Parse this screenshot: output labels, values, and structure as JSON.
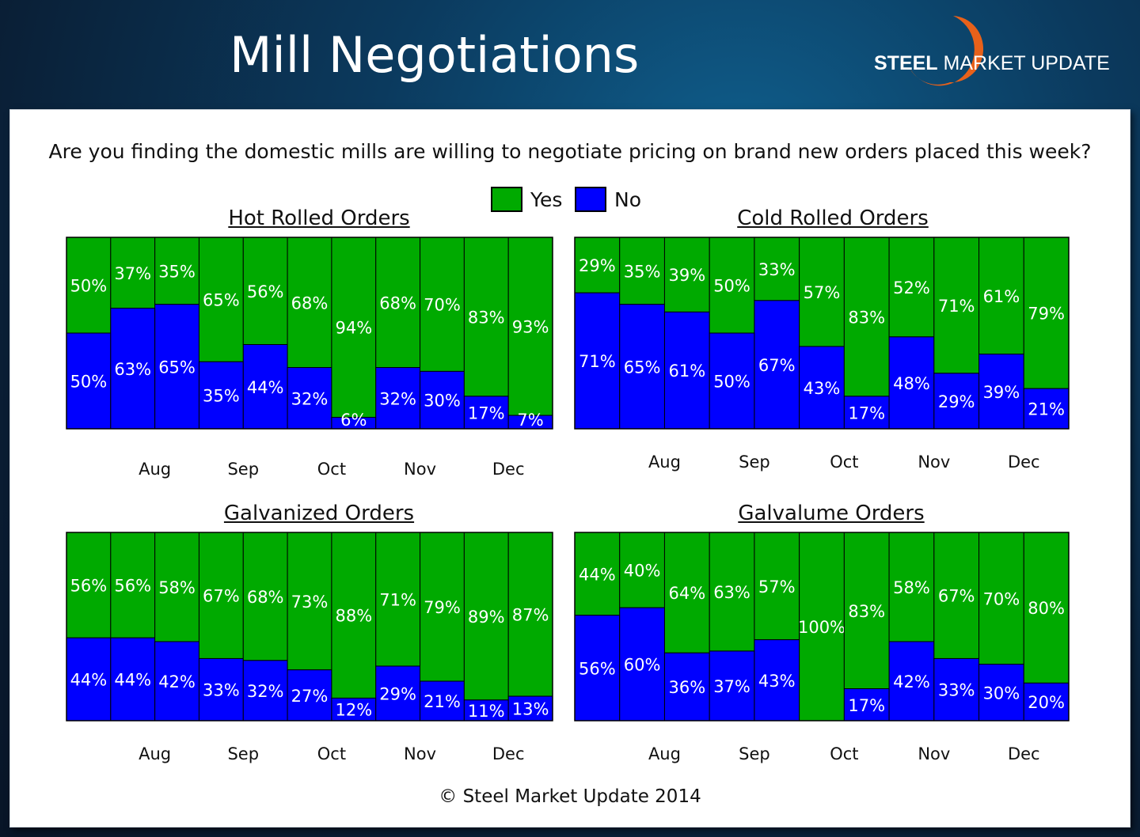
{
  "header": {
    "title": "Mill Negotiations",
    "logo_bold": "STEEL",
    "logo_rest": " MARKET UPDATE"
  },
  "question": "Are you finding the domestic mills are willing to negotiate pricing on brand new orders placed this week?",
  "legend": {
    "yes_label": "Yes",
    "no_label": "No",
    "yes_color": "#00aa00",
    "no_color": "#0000ff"
  },
  "copyright": "© Steel Market Update 2014",
  "chart_data": [
    {
      "type": "bar",
      "stacked": true,
      "title": "Hot Rolled Orders",
      "month_labels": [
        "Aug",
        "Sep",
        "Oct",
        "Nov",
        "Dec"
      ],
      "ylim": [
        0,
        100
      ],
      "series": [
        {
          "name": "Yes",
          "color": "#00aa00",
          "values": [
            50,
            37,
            35,
            65,
            56,
            68,
            94,
            68,
            70,
            83,
            93
          ]
        },
        {
          "name": "No",
          "color": "#0000ff",
          "values": [
            50,
            63,
            65,
            35,
            44,
            32,
            6,
            32,
            30,
            17,
            7
          ]
        }
      ]
    },
    {
      "type": "bar",
      "stacked": true,
      "title": "Cold Rolled Orders",
      "month_labels": [
        "Aug",
        "Sep",
        "Oct",
        "Nov",
        "Dec"
      ],
      "ylim": [
        0,
        100
      ],
      "series": [
        {
          "name": "Yes",
          "color": "#00aa00",
          "values": [
            29,
            35,
            39,
            50,
            33,
            57,
            83,
            52,
            71,
            61,
            79
          ]
        },
        {
          "name": "No",
          "color": "#0000ff",
          "values": [
            71,
            65,
            61,
            50,
            67,
            43,
            17,
            48,
            29,
            39,
            21
          ]
        }
      ]
    },
    {
      "type": "bar",
      "stacked": true,
      "title": "Galvanized Orders",
      "month_labels": [
        "Aug",
        "Sep",
        "Oct",
        "Nov",
        "Dec"
      ],
      "ylim": [
        0,
        100
      ],
      "series": [
        {
          "name": "Yes",
          "color": "#00aa00",
          "values": [
            56,
            56,
            58,
            67,
            68,
            73,
            88,
            71,
            79,
            89,
            87
          ]
        },
        {
          "name": "No",
          "color": "#0000ff",
          "values": [
            44,
            44,
            42,
            33,
            32,
            27,
            12,
            29,
            21,
            11,
            13
          ]
        }
      ]
    },
    {
      "type": "bar",
      "stacked": true,
      "title": "Galvalume Orders",
      "month_labels": [
        "Aug",
        "Sep",
        "Oct",
        "Nov",
        "Dec"
      ],
      "ylim": [
        0,
        100
      ],
      "series": [
        {
          "name": "Yes",
          "color": "#00aa00",
          "values": [
            44,
            40,
            64,
            63,
            57,
            100,
            83,
            58,
            67,
            70,
            80
          ]
        },
        {
          "name": "No",
          "color": "#0000ff",
          "values": [
            56,
            60,
            36,
            37,
            43,
            0,
            17,
            42,
            33,
            30,
            20
          ]
        }
      ]
    }
  ]
}
